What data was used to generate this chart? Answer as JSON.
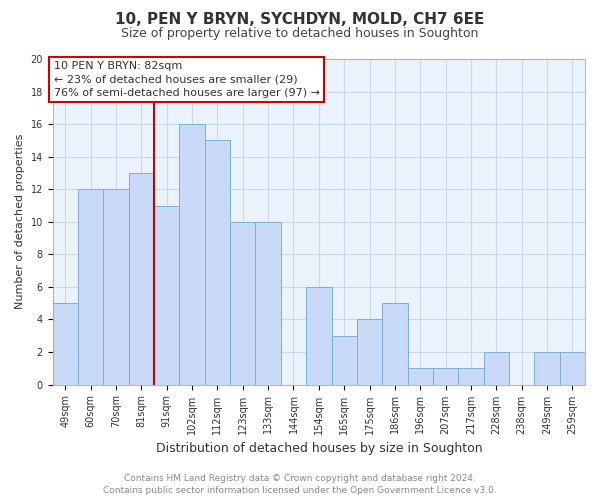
{
  "title": "10, PEN Y BRYN, SYCHDYN, MOLD, CH7 6EE",
  "subtitle": "Size of property relative to detached houses in Soughton",
  "xlabel": "Distribution of detached houses by size in Soughton",
  "ylabel": "Number of detached properties",
  "bar_labels": [
    "49sqm",
    "60sqm",
    "70sqm",
    "81sqm",
    "91sqm",
    "102sqm",
    "112sqm",
    "123sqm",
    "133sqm",
    "144sqm",
    "154sqm",
    "165sqm",
    "175sqm",
    "186sqm",
    "196sqm",
    "207sqm",
    "217sqm",
    "228sqm",
    "238sqm",
    "249sqm",
    "259sqm"
  ],
  "bar_values": [
    5,
    12,
    12,
    13,
    11,
    16,
    15,
    10,
    10,
    0,
    6,
    3,
    4,
    5,
    1,
    1,
    1,
    2,
    0,
    2,
    2
  ],
  "bar_color": "#c9daf8",
  "bar_edge_color": "#7bafd4",
  "vline_color": "#cc0000",
  "annotation_line1": "10 PEN Y BRYN: 82sqm",
  "annotation_line2": "← 23% of detached houses are smaller (29)",
  "annotation_line3": "76% of semi-detached houses are larger (97) →",
  "annotation_box_color": "#ffffff",
  "annotation_box_edge": "#cc0000",
  "ylim": [
    0,
    20
  ],
  "yticks": [
    0,
    2,
    4,
    6,
    8,
    10,
    12,
    14,
    16,
    18,
    20
  ],
  "grid_color": "#c8d8e8",
  "bg_color": "#eaf2fb",
  "footer_line1": "Contains HM Land Registry data © Crown copyright and database right 2024.",
  "footer_line2": "Contains public sector information licensed under the Open Government Licence v3.0.",
  "title_fontsize": 11,
  "subtitle_fontsize": 9,
  "xlabel_fontsize": 9,
  "ylabel_fontsize": 8,
  "tick_fontsize": 7,
  "footer_fontsize": 6.5,
  "annotation_fontsize": 8
}
